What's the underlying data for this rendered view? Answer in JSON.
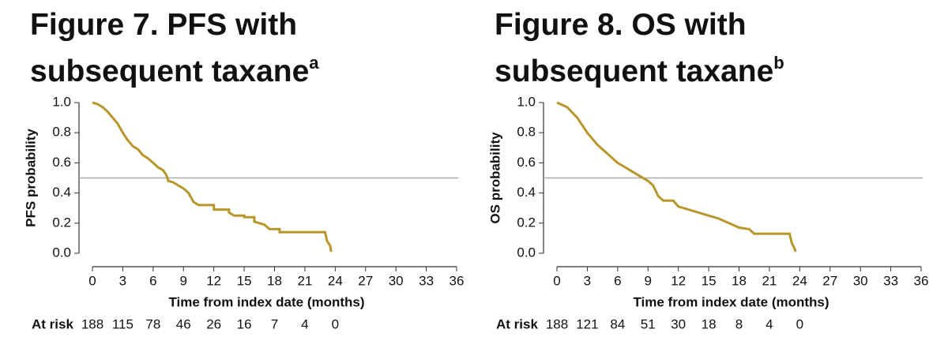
{
  "chart_data": [
    {
      "type": "line",
      "title": "Figure 7. PFS with subsequent taxane",
      "title_superscript": "a",
      "ylabel": "PFS probability",
      "xlabel": "Time from index date (months)",
      "x": [
        0,
        0.5,
        1,
        1.5,
        2,
        2.5,
        3,
        3.5,
        4,
        4.5,
        5,
        5.5,
        6,
        6.5,
        7,
        7.3,
        7.5,
        8,
        8.5,
        9,
        9.5,
        10,
        10.5,
        12,
        12,
        13.5,
        13.5,
        14,
        15,
        15,
        16,
        16,
        17,
        17.5,
        18.5,
        18.5,
        23,
        23.2,
        23.5,
        23.6
      ],
      "series": [
        {
          "name": "PFS",
          "color": "#b8962a",
          "values": [
            1.0,
            0.99,
            0.97,
            0.94,
            0.9,
            0.86,
            0.8,
            0.75,
            0.71,
            0.69,
            0.65,
            0.63,
            0.6,
            0.57,
            0.55,
            0.52,
            0.48,
            0.47,
            0.45,
            0.43,
            0.4,
            0.34,
            0.32,
            0.32,
            0.29,
            0.29,
            0.27,
            0.25,
            0.25,
            0.24,
            0.24,
            0.21,
            0.19,
            0.16,
            0.16,
            0.14,
            0.14,
            0.08,
            0.05,
            0.01
          ]
        }
      ],
      "hline": 0.5,
      "xlim": [
        0,
        36
      ],
      "xticks": [
        0,
        3,
        6,
        9,
        12,
        15,
        18,
        21,
        24,
        27,
        30,
        33,
        36
      ],
      "ylim": [
        0,
        1
      ],
      "yticks": [
        {
          "value": 0,
          "label": "0.0"
        },
        0.2,
        0.4,
        0.6,
        0.8,
        {
          "value": 1,
          "label": "1.0"
        }
      ],
      "at_risk_label": "At risk",
      "at_risk": [
        188,
        115,
        78,
        46,
        26,
        16,
        7,
        4,
        0
      ]
    },
    {
      "type": "line",
      "title": "Figure 8. OS with subsequent taxane",
      "title_superscript": "b",
      "ylabel": "OS probability",
      "xlabel": "Time from index date (months)",
      "x": [
        0,
        1,
        2,
        3,
        4,
        5,
        6,
        7,
        8,
        9,
        9.5,
        10,
        10.5,
        11.5,
        12,
        13,
        14,
        15,
        16,
        17,
        18,
        19,
        19.5,
        23,
        23.2,
        23.5,
        23.6
      ],
      "series": [
        {
          "name": "OS",
          "color": "#b8962a",
          "values": [
            1.0,
            0.97,
            0.9,
            0.8,
            0.72,
            0.66,
            0.6,
            0.56,
            0.52,
            0.48,
            0.45,
            0.38,
            0.35,
            0.35,
            0.31,
            0.29,
            0.27,
            0.25,
            0.23,
            0.2,
            0.17,
            0.16,
            0.13,
            0.13,
            0.07,
            0.03,
            0.01
          ]
        }
      ],
      "hline": 0.5,
      "xlim": [
        0,
        36
      ],
      "xticks": [
        0,
        3,
        6,
        9,
        12,
        15,
        18,
        21,
        24,
        27,
        30,
        33,
        36
      ],
      "ylim": [
        0,
        1
      ],
      "yticks": [
        {
          "value": 0,
          "label": "0.0"
        },
        0.2,
        0.4,
        0.6,
        0.8,
        {
          "value": 1,
          "label": "1.0"
        }
      ],
      "at_risk_label": "At risk",
      "at_risk": [
        188,
        121,
        84,
        51,
        30,
        18,
        8,
        4,
        0
      ]
    }
  ]
}
